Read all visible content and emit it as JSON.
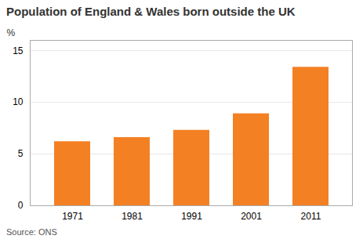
{
  "chart_data": {
    "type": "bar",
    "title": "Population of England & Wales born outside the UK",
    "ylabel": "%",
    "source": "Source: ONS",
    "categories": [
      "1971",
      "1981",
      "1991",
      "2001",
      "2011"
    ],
    "values": [
      6.2,
      6.6,
      7.3,
      8.9,
      13.4
    ],
    "color": "#F48024",
    "ylim": [
      0,
      16
    ],
    "yticks": [
      0,
      5,
      10,
      15
    ],
    "grid": true
  }
}
